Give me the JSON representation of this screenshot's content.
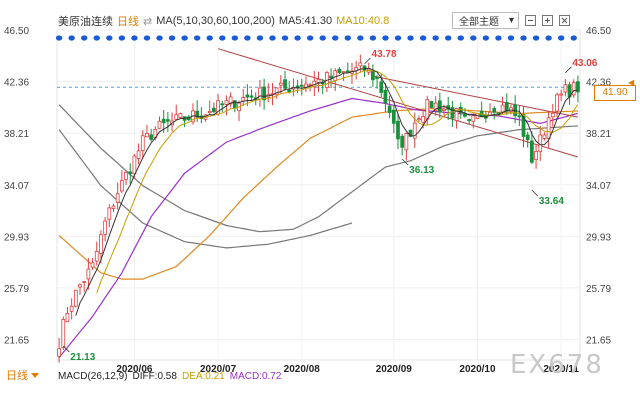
{
  "legend": {
    "symbol": "美原油连续",
    "period": "日线",
    "ma_spec": "MA(5,10,30,60,100,200)",
    "ma5_label": "MA5:41.30",
    "ma10_label": "MA10:40.8"
  },
  "theme_button": {
    "label": "全部主题",
    "icon": "chevron-down-icon"
  },
  "footer": {
    "period_tab": "日线",
    "macd_label": "MACD(26,12,9)",
    "diff_label": "DIFF:0.58",
    "dea_label": "DEA:0.21",
    "macd_value": "MACD:0.72"
  },
  "watermark": "EX678",
  "current_price": "41.90",
  "colors": {
    "up": "#e04040",
    "down": "#1a8f3c",
    "ma5": "#333333",
    "ma10": "#c6a000",
    "ma30": "#9b30c9",
    "ma60": "#e08a20",
    "ma100": "#777777",
    "trend": "#b04040",
    "dots": "#1a5ad6",
    "accent": "#e07b00"
  },
  "chart_data": {
    "type": "candlestick",
    "y_ticks": [
      "46.50",
      "42.36",
      "38.21",
      "34.07",
      "29.93",
      "25.79",
      "21.65"
    ],
    "ylim": [
      20.0,
      46.5
    ],
    "x_ticks": [
      "2020/06",
      "2020/07",
      "2020/08",
      "2020/09",
      "2020/10",
      "2020/11"
    ],
    "x_tick_index": [
      18,
      38,
      58,
      80,
      100,
      120
    ],
    "n_bars": 125,
    "annotations": [
      {
        "label": "43.78",
        "value": 43.78,
        "index": 73,
        "color": "#e04040",
        "position": "above"
      },
      {
        "label": "36.13",
        "value": 36.13,
        "index": 82,
        "color": "#1a8f3c",
        "position": "below"
      },
      {
        "label": "43.06",
        "value": 43.06,
        "index": 121,
        "color": "#e04040",
        "position": "above"
      },
      {
        "label": "33.64",
        "value": 33.64,
        "index": 113,
        "color": "#1a8f3c",
        "position": "below"
      },
      {
        "label": "21.13",
        "value": 21.13,
        "index": 1,
        "color": "#1a8f3c",
        "position": "below"
      }
    ],
    "current_price": 41.9,
    "close_anchors": [
      [
        0,
        21.5
      ],
      [
        2,
        24.0
      ],
      [
        5,
        26.0
      ],
      [
        8,
        27.5
      ],
      [
        11,
        31.0
      ],
      [
        14,
        33.5
      ],
      [
        17,
        35.5
      ],
      [
        20,
        37.5
      ],
      [
        23,
        38.5
      ],
      [
        26,
        39.0
      ],
      [
        30,
        39.4
      ],
      [
        34,
        39.8
      ],
      [
        38,
        40.3
      ],
      [
        42,
        40.8
      ],
      [
        46,
        41.2
      ],
      [
        50,
        41.5
      ],
      [
        54,
        41.8
      ],
      [
        58,
        42.2
      ],
      [
        62,
        42.4
      ],
      [
        66,
        42.8
      ],
      [
        70,
        43.2
      ],
      [
        73,
        43.4
      ],
      [
        76,
        42.5
      ],
      [
        79,
        40.0
      ],
      [
        81,
        37.3
      ],
      [
        83,
        37.8
      ],
      [
        86,
        39.8
      ],
      [
        89,
        40.6
      ],
      [
        92,
        40.2
      ],
      [
        95,
        39.7
      ],
      [
        98,
        38.8
      ],
      [
        101,
        39.8
      ],
      [
        104,
        40.4
      ],
      [
        107,
        40.3
      ],
      [
        110,
        39.3
      ],
      [
        113,
        36.2
      ],
      [
        115,
        37.6
      ],
      [
        118,
        40.4
      ],
      [
        121,
        41.6
      ],
      [
        124,
        41.9
      ]
    ],
    "ma30_anchors": [
      [
        0,
        20.2
      ],
      [
        8,
        23.5
      ],
      [
        15,
        27.0
      ],
      [
        22,
        31.5
      ],
      [
        30,
        35.0
      ],
      [
        40,
        37.5
      ],
      [
        50,
        38.8
      ],
      [
        60,
        40.0
      ],
      [
        70,
        41.0
      ],
      [
        78,
        40.6
      ],
      [
        85,
        40.1
      ],
      [
        95,
        39.8
      ],
      [
        105,
        39.6
      ],
      [
        115,
        39.0
      ],
      [
        124,
        39.8
      ]
    ],
    "ma60_anchors": [
      [
        0,
        30.0
      ],
      [
        5,
        28.5
      ],
      [
        10,
        27.0
      ],
      [
        15,
        26.5
      ],
      [
        20,
        26.5
      ],
      [
        28,
        27.5
      ],
      [
        36,
        30.0
      ],
      [
        44,
        33.0
      ],
      [
        52,
        35.5
      ],
      [
        60,
        37.8
      ],
      [
        70,
        39.5
      ],
      [
        80,
        40.0
      ],
      [
        90,
        40.2
      ],
      [
        100,
        40.0
      ],
      [
        110,
        39.8
      ],
      [
        124,
        40.0
      ]
    ],
    "ma100_anchors": [
      [
        0,
        40.5
      ],
      [
        10,
        37.0
      ],
      [
        20,
        34.0
      ],
      [
        30,
        32.0
      ],
      [
        40,
        30.8
      ],
      [
        48,
        30.3
      ],
      [
        56,
        30.5
      ],
      [
        62,
        31.5
      ],
      [
        70,
        33.5
      ],
      [
        78,
        35.5
      ],
      [
        84,
        36.0
      ],
      [
        92,
        37.2
      ],
      [
        100,
        38.0
      ],
      [
        110,
        38.5
      ],
      [
        124,
        38.8
      ]
    ],
    "ma200_anchors": [
      [
        0,
        38.5
      ],
      [
        10,
        34.0
      ],
      [
        20,
        31.0
      ],
      [
        30,
        29.5
      ],
      [
        40,
        29.0
      ],
      [
        50,
        29.3
      ],
      [
        60,
        30.0
      ],
      [
        70,
        31.0
      ]
    ],
    "trend_lines": [
      {
        "from": [
          38,
          45.0
        ],
        "to": [
          124,
          36.3
        ]
      },
      {
        "from": [
          75,
          42.8
        ],
        "to": [
          124,
          39.5
        ]
      }
    ]
  }
}
